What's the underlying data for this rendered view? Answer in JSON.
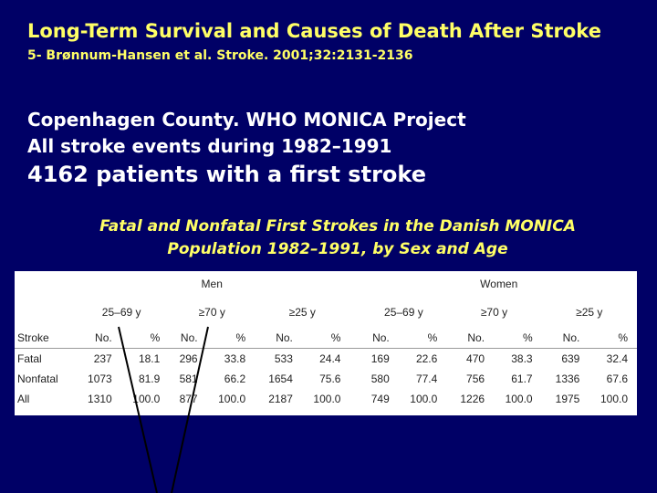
{
  "slide": {
    "title": "Long-Term Survival and Causes of Death After Stroke",
    "reference": "5- Brønnum-Hansen et al. Stroke. 2001;32:2131-2136",
    "line1": "Copenhagen County. WHO MONICA Project",
    "line2": "All stroke events during 1982–1991",
    "line3": "4162 patients with a first stroke",
    "caption_line1": "Fatal and Nonfatal First Strokes in the Danish MONICA",
    "caption_line2": "Population  1982–1991, by Sex and Age"
  },
  "table": {
    "group_men": "Men",
    "group_women": "Women",
    "age_groups": [
      "25–69 y",
      "≥70 y",
      "≥25 y",
      "25–69 y",
      "≥70 y",
      "≥25 y"
    ],
    "row_header": "Stroke",
    "col_no": "No.",
    "col_pct": "%",
    "rows": [
      {
        "label": "Fatal",
        "cells": [
          "237",
          "18.1",
          "296",
          "33.8",
          "533",
          "24.4",
          "169",
          "22.6",
          "470",
          "38.3",
          "639",
          "32.4"
        ]
      },
      {
        "label": "Nonfatal",
        "cells": [
          "1073",
          "81.9",
          "581",
          "66.2",
          "1654",
          "75.6",
          "580",
          "77.4",
          "756",
          "61.7",
          "1336",
          "67.6"
        ]
      },
      {
        "label": "All",
        "cells": [
          "1310",
          "100.0",
          "877",
          "100.0",
          "2187",
          "100.0",
          "749",
          "100.0",
          "1226",
          "100.0",
          "1975",
          "100.0"
        ]
      }
    ]
  },
  "colors": {
    "background": "#000066",
    "title": "#ffff66",
    "body_text": "#ffffff",
    "annotation_lines": "#000000"
  }
}
